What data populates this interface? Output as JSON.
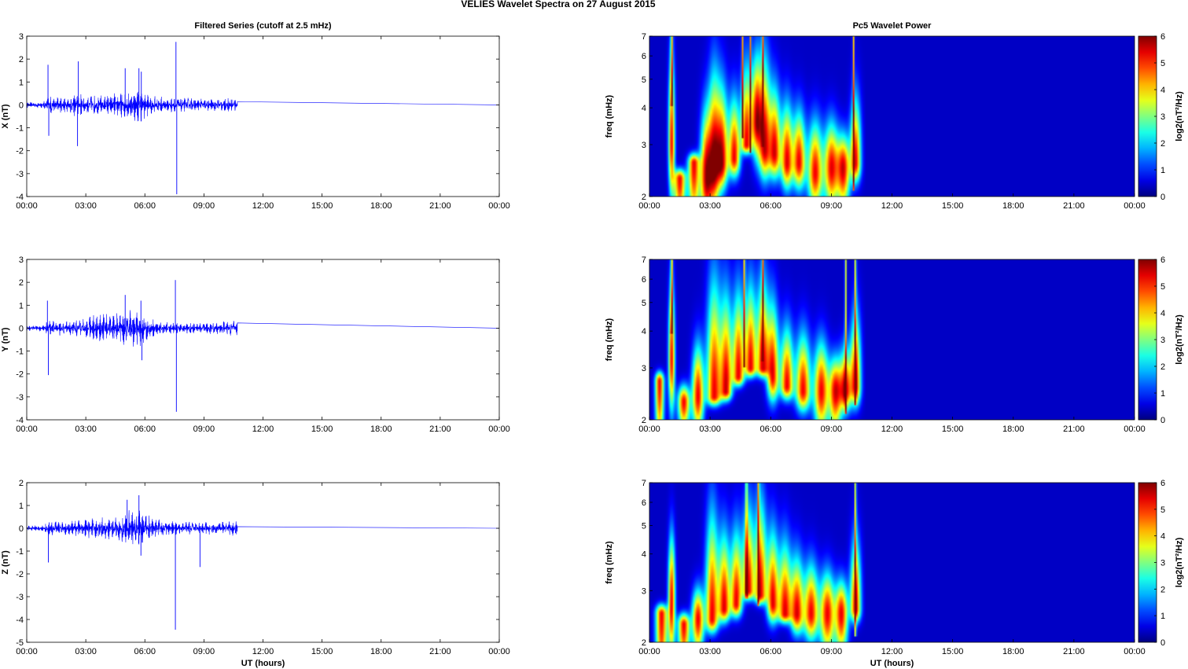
{
  "figure": {
    "suptitle": "VELIES Wavelet Spectra on 27 August    2015"
  },
  "chart_data": [
    {
      "type": "line",
      "title": "Filtered Series (cutoff at 2.5 mHz)",
      "ylabel": "X (nT)",
      "xlabel": "",
      "ylim": [
        -4,
        3
      ],
      "yticks": [
        "3",
        "2",
        "1",
        "0",
        "-1",
        "-2",
        "-3",
        "-4"
      ],
      "xlim": [
        "00:00",
        "24:00"
      ],
      "xticks": [
        "00:00",
        "03:00",
        "06:00",
        "09:00",
        "12:00",
        "15:00",
        "18:00",
        "21:00",
        "00:00"
      ],
      "line_color": "#0000ff",
      "data_end_hour": 10.7,
      "envelope": [
        [
          0.0,
          0.12
        ],
        [
          0.9,
          0.18
        ],
        [
          1.1,
          0.45
        ],
        [
          2.0,
          0.35
        ],
        [
          2.6,
          0.6
        ],
        [
          3.0,
          0.4
        ],
        [
          3.8,
          0.45
        ],
        [
          4.6,
          0.55
        ],
        [
          5.2,
          0.7
        ],
        [
          5.7,
          0.85
        ],
        [
          6.3,
          0.45
        ],
        [
          7.0,
          0.35
        ],
        [
          8.0,
          0.32
        ],
        [
          9.0,
          0.28
        ],
        [
          10.0,
          0.3
        ],
        [
          10.7,
          0.35
        ]
      ],
      "spikes": [
        [
          1.08,
          1.75
        ],
        [
          1.12,
          -1.35
        ],
        [
          2.58,
          -1.8
        ],
        [
          2.62,
          1.9
        ],
        [
          5.0,
          1.6
        ],
        [
          5.7,
          1.6
        ],
        [
          5.82,
          1.45
        ],
        [
          7.58,
          2.75
        ],
        [
          7.62,
          -3.9
        ]
      ]
    },
    {
      "type": "heatmap",
      "title": "Pc5 Wavelet Power",
      "ylabel": "freq (mHz)",
      "xlabel": "",
      "ylim": [
        2,
        7
      ],
      "yscale": "log",
      "yticks": [
        "7",
        "6",
        "5",
        "4",
        "3",
        "2"
      ],
      "xlim": [
        "00:00",
        "24:00"
      ],
      "xticks": [
        "00:00",
        "03:00",
        "06:00",
        "09:00",
        "12:00",
        "15:00",
        "18:00",
        "21:00",
        "00:00"
      ],
      "colorbar": {
        "label": "log2(nT²/Hz)",
        "range": [
          0,
          6
        ],
        "ticks": [
          "6",
          "5",
          "4",
          "3",
          "2",
          "1",
          "0"
        ],
        "colormap": "jet"
      },
      "data_end_hour": 10.5,
      "blobs": [
        [
          1.1,
          0.11,
          3.0,
          5.8,
          2.3
        ],
        [
          1.5,
          0.2,
          2.3,
          2.2,
          1.8
        ],
        [
          2.2,
          0.2,
          2.6,
          2.5,
          1.8
        ],
        [
          2.8,
          0.2,
          2.3,
          3.8,
          1.8
        ],
        [
          3.2,
          0.2,
          2.5,
          5.0,
          2.0
        ],
        [
          3.6,
          0.2,
          2.6,
          4.5,
          2.3
        ],
        [
          4.2,
          0.2,
          2.7,
          4.2,
          2.5
        ],
        [
          4.8,
          0.18,
          3.0,
          5.3,
          3.5
        ],
        [
          5.3,
          0.18,
          3.6,
          5.8,
          3.0
        ],
        [
          5.7,
          0.2,
          2.9,
          5.6,
          2.5
        ],
        [
          6.2,
          0.2,
          2.8,
          4.5,
          2.5
        ],
        [
          6.8,
          0.2,
          2.6,
          4.0,
          2.3
        ],
        [
          7.4,
          0.22,
          2.6,
          3.8,
          2.3
        ],
        [
          8.2,
          0.25,
          2.4,
          3.5,
          2.0
        ],
        [
          9.0,
          0.25,
          2.5,
          3.5,
          2.0
        ],
        [
          9.6,
          0.22,
          2.5,
          3.2,
          2.0
        ],
        [
          10.2,
          0.18,
          2.6,
          4.2,
          2.4
        ]
      ],
      "streaks": [
        [
          1.1,
          5.8
        ],
        [
          4.6,
          4.5
        ],
        [
          5.0,
          4.0
        ],
        [
          5.6,
          4.2
        ],
        [
          10.1,
          3.0
        ]
      ]
    },
    {
      "type": "line",
      "title": "",
      "ylabel": "Y (nT)",
      "xlabel": "",
      "ylim": [
        -4,
        3
      ],
      "yticks": [
        "3",
        "2",
        "1",
        "0",
        "-1",
        "-2",
        "-3",
        "-4"
      ],
      "xlim": [
        "00:00",
        "24:00"
      ],
      "xticks": [
        "00:00",
        "03:00",
        "06:00",
        "09:00",
        "12:00",
        "15:00",
        "18:00",
        "21:00",
        "00:00"
      ],
      "line_color": "#0000ff",
      "data_end_hour": 10.7,
      "envelope": [
        [
          0.0,
          0.12
        ],
        [
          0.9,
          0.15
        ],
        [
          1.1,
          0.4
        ],
        [
          2.0,
          0.3
        ],
        [
          3.0,
          0.45
        ],
        [
          3.6,
          0.7
        ],
        [
          4.4,
          0.6
        ],
        [
          5.0,
          0.85
        ],
        [
          5.7,
          0.9
        ],
        [
          6.2,
          0.5
        ],
        [
          7.0,
          0.3
        ],
        [
          8.0,
          0.25
        ],
        [
          9.0,
          0.25
        ],
        [
          10.0,
          0.3
        ],
        [
          10.7,
          0.35
        ]
      ],
      "spikes": [
        [
          1.05,
          1.2
        ],
        [
          1.1,
          -2.05
        ],
        [
          5.0,
          1.45
        ],
        [
          5.8,
          1.2
        ],
        [
          5.85,
          -1.4
        ],
        [
          7.55,
          2.1
        ],
        [
          7.6,
          -3.65
        ]
      ]
    },
    {
      "type": "heatmap",
      "title": "",
      "ylabel": "freq (mHz)",
      "xlabel": "",
      "ylim": [
        2,
        7
      ],
      "yscale": "log",
      "yticks": [
        "7",
        "6",
        "5",
        "4",
        "3",
        "2"
      ],
      "xlim": [
        "00:00",
        "24:00"
      ],
      "xticks": [
        "00:00",
        "03:00",
        "06:00",
        "09:00",
        "12:00",
        "15:00",
        "18:00",
        "21:00",
        "00:00"
      ],
      "colorbar": {
        "label": "log2(nT²/Hz)",
        "range": [
          0,
          6
        ],
        "ticks": [
          "6",
          "5",
          "4",
          "3",
          "2",
          "1",
          "0"
        ],
        "colormap": "jet"
      },
      "data_end_hour": 10.5,
      "blobs": [
        [
          0.5,
          0.15,
          2.7,
          2.0,
          1.8
        ],
        [
          1.1,
          0.11,
          3.2,
          5.6,
          2.4
        ],
        [
          1.7,
          0.2,
          2.3,
          2.6,
          2.0
        ],
        [
          2.4,
          0.2,
          2.4,
          3.5,
          2.0
        ],
        [
          3.2,
          0.25,
          2.4,
          5.6,
          2.5
        ],
        [
          3.8,
          0.2,
          2.5,
          5.0,
          2.6
        ],
        [
          4.4,
          0.2,
          2.8,
          5.2,
          2.8
        ],
        [
          5.0,
          0.2,
          3.0,
          5.5,
          3.0
        ],
        [
          5.6,
          0.2,
          3.0,
          5.7,
          3.0
        ],
        [
          6.1,
          0.2,
          2.8,
          4.8,
          2.5
        ],
        [
          6.8,
          0.22,
          2.6,
          4.0,
          2.5
        ],
        [
          7.6,
          0.25,
          2.5,
          3.8,
          2.3
        ],
        [
          8.5,
          0.25,
          2.5,
          3.6,
          2.0
        ],
        [
          9.2,
          0.22,
          2.5,
          3.2,
          2.0
        ],
        [
          9.7,
          0.2,
          2.5,
          3.4,
          2.3
        ],
        [
          10.2,
          0.18,
          2.6,
          4.4,
          2.4
        ]
      ],
      "streaks": [
        [
          1.1,
          5.6
        ],
        [
          4.7,
          4.3
        ],
        [
          5.6,
          4.5
        ],
        [
          9.7,
          3.0
        ],
        [
          10.2,
          3.2
        ]
      ]
    },
    {
      "type": "line",
      "title": "",
      "ylabel": "Z (nT)",
      "xlabel": "UT (hours)",
      "ylim": [
        -5,
        2
      ],
      "yticks": [
        "2",
        "1",
        "0",
        "-1",
        "-2",
        "-3",
        "-4",
        "-5"
      ],
      "xlim": [
        "00:00",
        "24:00"
      ],
      "xticks": [
        "00:00",
        "03:00",
        "06:00",
        "09:00",
        "12:00",
        "15:00",
        "18:00",
        "21:00",
        "00:00"
      ],
      "line_color": "#0000ff",
      "data_end_hour": 10.7,
      "envelope": [
        [
          0.0,
          0.12
        ],
        [
          0.9,
          0.15
        ],
        [
          1.1,
          0.35
        ],
        [
          2.0,
          0.3
        ],
        [
          3.0,
          0.45
        ],
        [
          3.8,
          0.5
        ],
        [
          4.6,
          0.55
        ],
        [
          5.2,
          0.8
        ],
        [
          5.7,
          0.95
        ],
        [
          6.3,
          0.5
        ],
        [
          7.0,
          0.35
        ],
        [
          8.0,
          0.3
        ],
        [
          9.0,
          0.28
        ],
        [
          10.0,
          0.3
        ],
        [
          10.7,
          0.35
        ]
      ],
      "spikes": [
        [
          1.1,
          -1.5
        ],
        [
          5.1,
          1.25
        ],
        [
          5.7,
          1.45
        ],
        [
          5.8,
          -1.2
        ],
        [
          7.55,
          -4.45
        ],
        [
          8.8,
          -1.7
        ]
      ]
    },
    {
      "type": "heatmap",
      "title": "",
      "ylabel": "freq (mHz)",
      "xlabel": "UT (hours)",
      "ylim": [
        2,
        7
      ],
      "yscale": "log",
      "yticks": [
        "7",
        "6",
        "5",
        "4",
        "3",
        "2"
      ],
      "xlim": [
        "00:00",
        "24:00"
      ],
      "xticks": [
        "00:00",
        "03:00",
        "06:00",
        "09:00",
        "12:00",
        "15:00",
        "18:00",
        "21:00",
        "00:00"
      ],
      "colorbar": {
        "label": "log2(nT²/Hz)",
        "range": [
          0,
          6
        ],
        "ticks": [
          "6",
          "5",
          "4",
          "3",
          "2",
          "1",
          "0"
        ],
        "colormap": "jet"
      },
      "data_end_hour": 10.5,
      "blobs": [
        [
          0.6,
          0.2,
          2.5,
          2.0,
          1.5
        ],
        [
          1.1,
          0.12,
          2.8,
          4.5,
          2.0
        ],
        [
          1.7,
          0.2,
          2.3,
          2.5,
          1.8
        ],
        [
          2.4,
          0.2,
          2.4,
          3.0,
          2.0
        ],
        [
          3.1,
          0.22,
          2.4,
          5.2,
          2.3
        ],
        [
          3.7,
          0.2,
          2.6,
          4.5,
          2.5
        ],
        [
          4.3,
          0.2,
          2.7,
          4.6,
          2.6
        ],
        [
          4.9,
          0.2,
          3.0,
          5.5,
          3.3
        ],
        [
          5.5,
          0.2,
          2.9,
          5.8,
          3.0
        ],
        [
          6.1,
          0.2,
          2.7,
          4.6,
          2.5
        ],
        [
          6.7,
          0.22,
          2.5,
          4.2,
          2.5
        ],
        [
          7.3,
          0.22,
          2.5,
          3.8,
          2.3
        ],
        [
          8.0,
          0.25,
          2.5,
          3.6,
          2.2
        ],
        [
          8.8,
          0.25,
          2.5,
          3.4,
          2.0
        ],
        [
          9.5,
          0.22,
          2.5,
          3.2,
          2.0
        ],
        [
          10.2,
          0.18,
          2.6,
          4.3,
          2.5
        ]
      ],
      "streaks": [
        [
          4.8,
          4.0
        ],
        [
          5.4,
          3.8
        ],
        [
          10.2,
          3.0
        ]
      ]
    }
  ]
}
